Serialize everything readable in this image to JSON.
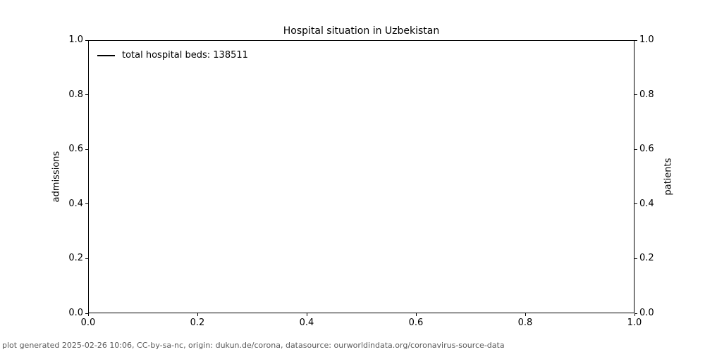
{
  "title": "Hospital situation in Uzbekistan",
  "legend": {
    "items": [
      {
        "label": "total hospital beds: 138511",
        "color": "#000000"
      }
    ]
  },
  "axes": {
    "x": {
      "tick_labels": [
        "0.0",
        "0.2",
        "0.4",
        "0.6",
        "0.8",
        "1.0"
      ]
    },
    "y_left": {
      "label": "admissions",
      "tick_labels": [
        "0.0",
        "0.2",
        "0.4",
        "0.6",
        "0.8",
        "1.0"
      ]
    },
    "y_right": {
      "label": "patients",
      "tick_labels": [
        "0.0",
        "0.2",
        "0.4",
        "0.6",
        "0.8",
        "1.0"
      ]
    }
  },
  "footer": "plot generated 2025-02-26 10:06, CC-by-sa-nc, origin: dukun.de/corona, datasource: ourworldindata.org/coronavirus-source-data",
  "colors": {
    "axis": "#000000",
    "text": "#000000",
    "footer_text": "#5a5a5a",
    "background": "#ffffff",
    "series_line": "#000000"
  },
  "chart_data": {
    "type": "line",
    "title": "Hospital situation in Uzbekistan",
    "xlabel": "",
    "ylabel_left": "admissions",
    "ylabel_right": "patients",
    "xlim": [
      0.0,
      1.0
    ],
    "ylim_left": [
      0.0,
      1.0
    ],
    "ylim_right": [
      0.0,
      1.0
    ],
    "x_ticks": [
      0.0,
      0.2,
      0.4,
      0.6,
      0.8,
      1.0
    ],
    "y_ticks_left": [
      0.0,
      0.2,
      0.4,
      0.6,
      0.8,
      1.0
    ],
    "y_ticks_right": [
      0.0,
      0.2,
      0.4,
      0.6,
      0.8,
      1.0
    ],
    "grid": false,
    "legend_position": "upper left",
    "series": [
      {
        "name": "total hospital beds: 138511",
        "color": "#000000",
        "x": [],
        "y": []
      }
    ]
  }
}
